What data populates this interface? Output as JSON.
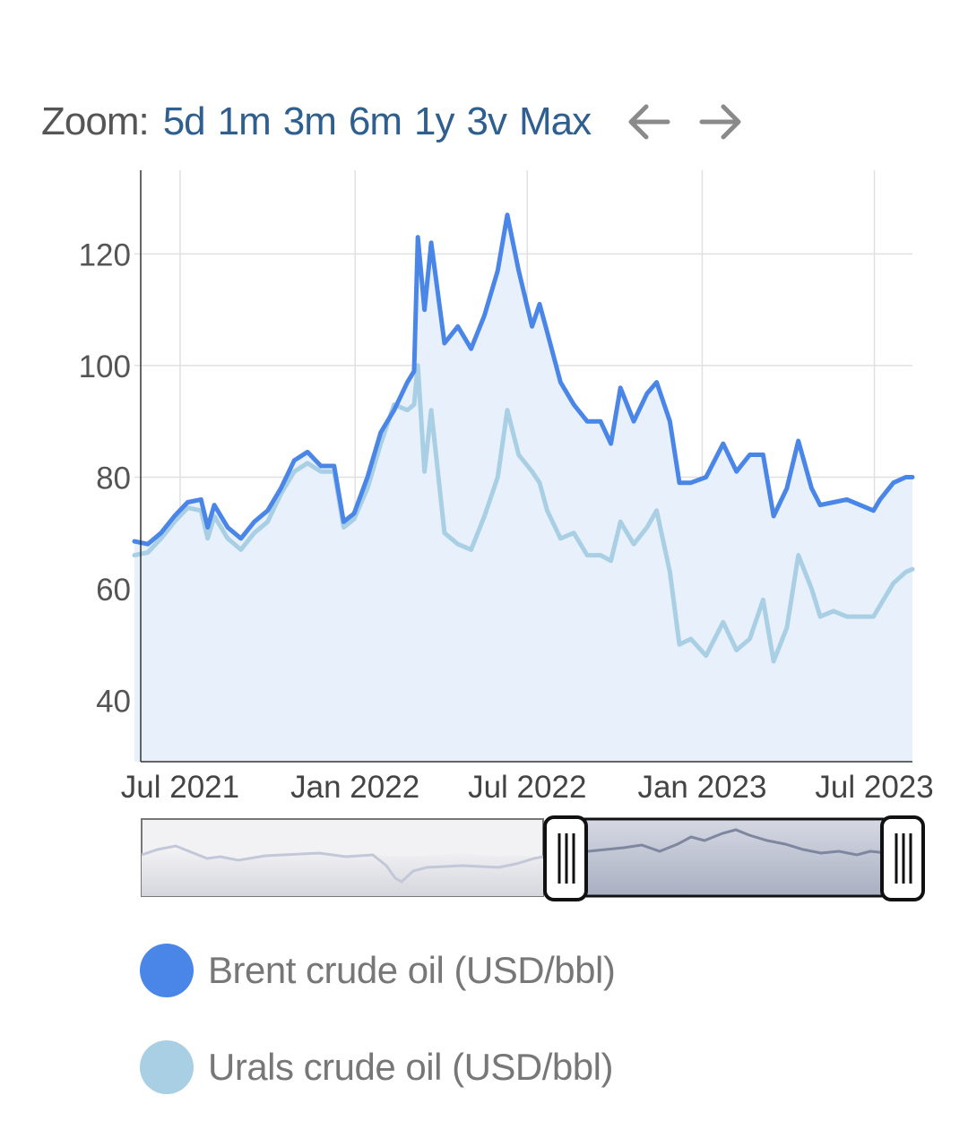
{
  "zoom": {
    "label": "Zoom:",
    "options": [
      "5d",
      "1m",
      "3m",
      "6m",
      "1y",
      "3v",
      "Max"
    ],
    "prev_icon": "arrow-left-icon",
    "next_icon": "arrow-right-icon"
  },
  "colors": {
    "brent": "#4a86e8",
    "urals": "#a8cfe3",
    "area": "#e8f0fb",
    "grid": "#e0e0e0",
    "zoom_link": "#2f5f8f"
  },
  "chart_data": {
    "type": "line",
    "title": "",
    "xlabel": "",
    "ylabel": "",
    "ylim": [
      29,
      135
    ],
    "yticks": [
      40,
      60,
      80,
      100,
      120
    ],
    "xlim": [
      "2021-05-14",
      "2023-08-10"
    ],
    "xticks": [
      {
        "date": "2021-07-01",
        "label": "Jul 2021"
      },
      {
        "date": "2022-01-01",
        "label": "Jan 2022"
      },
      {
        "date": "2022-07-01",
        "label": "Jul 2022"
      },
      {
        "date": "2023-01-01",
        "label": "Jan 2023"
      },
      {
        "date": "2023-07-01",
        "label": "Jul 2023"
      }
    ],
    "grid": true,
    "legend_position": "bottom",
    "series": [
      {
        "name": "Brent crude oil (USD/bbl)",
        "points": [
          [
            "2021-05-14",
            68.5
          ],
          [
            "2021-05-28",
            68.0
          ],
          [
            "2021-06-11",
            70.0
          ],
          [
            "2021-06-25",
            73.0
          ],
          [
            "2021-07-09",
            75.5
          ],
          [
            "2021-07-23",
            76.0
          ],
          [
            "2021-07-30",
            71.0
          ],
          [
            "2021-08-06",
            75.0
          ],
          [
            "2021-08-20",
            71.0
          ],
          [
            "2021-09-03",
            69.0
          ],
          [
            "2021-09-17",
            72.0
          ],
          [
            "2021-10-01",
            74.0
          ],
          [
            "2021-10-15",
            78.0
          ],
          [
            "2021-10-29",
            83.0
          ],
          [
            "2021-11-12",
            84.5
          ],
          [
            "2021-11-26",
            82.0
          ],
          [
            "2021-12-10",
            82.0
          ],
          [
            "2021-12-20",
            72.0
          ],
          [
            "2021-12-31",
            73.5
          ],
          [
            "2022-01-14",
            80.0
          ],
          [
            "2022-01-28",
            88.0
          ],
          [
            "2022-02-11",
            92.0
          ],
          [
            "2022-02-25",
            97.0
          ],
          [
            "2022-03-04",
            99.0
          ],
          [
            "2022-03-08",
            123.0
          ],
          [
            "2022-03-15",
            110.0
          ],
          [
            "2022-03-22",
            122.0
          ],
          [
            "2022-04-05",
            104.0
          ],
          [
            "2022-04-19",
            107.0
          ],
          [
            "2022-05-03",
            103.0
          ],
          [
            "2022-05-17",
            109.0
          ],
          [
            "2022-05-31",
            117.0
          ],
          [
            "2022-06-10",
            127.0
          ],
          [
            "2022-06-22",
            117.0
          ],
          [
            "2022-07-06",
            107.0
          ],
          [
            "2022-07-14",
            111.0
          ],
          [
            "2022-07-22",
            106.0
          ],
          [
            "2022-08-05",
            97.0
          ],
          [
            "2022-08-19",
            93.0
          ],
          [
            "2022-09-02",
            90.0
          ],
          [
            "2022-09-16",
            90.0
          ],
          [
            "2022-09-27",
            86.0
          ],
          [
            "2022-10-07",
            96.0
          ],
          [
            "2022-10-21",
            90.0
          ],
          [
            "2022-11-04",
            95.0
          ],
          [
            "2022-11-14",
            97.0
          ],
          [
            "2022-11-28",
            90.0
          ],
          [
            "2022-12-08",
            79.0
          ],
          [
            "2022-12-20",
            79.0
          ],
          [
            "2023-01-05",
            80.0
          ],
          [
            "2023-01-23",
            86.0
          ],
          [
            "2023-02-06",
            81.0
          ],
          [
            "2023-02-20",
            84.0
          ],
          [
            "2023-03-06",
            84.0
          ],
          [
            "2023-03-17",
            73.0
          ],
          [
            "2023-03-31",
            78.0
          ],
          [
            "2023-04-12",
            86.5
          ],
          [
            "2023-04-26",
            78.0
          ],
          [
            "2023-05-05",
            75.0
          ],
          [
            "2023-05-19",
            75.5
          ],
          [
            "2023-06-02",
            76.0
          ],
          [
            "2023-06-16",
            75.0
          ],
          [
            "2023-06-30",
            74.0
          ],
          [
            "2023-07-07",
            76.0
          ],
          [
            "2023-07-21",
            79.0
          ],
          [
            "2023-08-03",
            80.0
          ],
          [
            "2023-08-10",
            80.0
          ]
        ]
      },
      {
        "name": "Urals crude oil (USD/bbl)",
        "points": [
          [
            "2021-05-14",
            66.0
          ],
          [
            "2021-05-28",
            66.5
          ],
          [
            "2021-06-11",
            69.0
          ],
          [
            "2021-06-25",
            72.0
          ],
          [
            "2021-07-09",
            74.5
          ],
          [
            "2021-07-23",
            74.0
          ],
          [
            "2021-07-30",
            69.0
          ],
          [
            "2021-08-06",
            73.0
          ],
          [
            "2021-08-20",
            69.0
          ],
          [
            "2021-09-03",
            67.0
          ],
          [
            "2021-09-17",
            70.0
          ],
          [
            "2021-10-01",
            72.0
          ],
          [
            "2021-10-15",
            77.0
          ],
          [
            "2021-10-29",
            81.0
          ],
          [
            "2021-11-12",
            82.5
          ],
          [
            "2021-11-26",
            81.0
          ],
          [
            "2021-12-10",
            81.0
          ],
          [
            "2021-12-20",
            71.0
          ],
          [
            "2021-12-31",
            72.5
          ],
          [
            "2022-01-14",
            78.0
          ],
          [
            "2022-01-28",
            86.0
          ],
          [
            "2022-02-11",
            93.0
          ],
          [
            "2022-02-25",
            92.0
          ],
          [
            "2022-03-04",
            93.0
          ],
          [
            "2022-03-08",
            100.0
          ],
          [
            "2022-03-15",
            81.0
          ],
          [
            "2022-03-22",
            92.0
          ],
          [
            "2022-04-05",
            70.0
          ],
          [
            "2022-04-19",
            68.0
          ],
          [
            "2022-05-03",
            67.0
          ],
          [
            "2022-05-17",
            73.0
          ],
          [
            "2022-05-31",
            80.0
          ],
          [
            "2022-06-10",
            92.0
          ],
          [
            "2022-06-22",
            84.0
          ],
          [
            "2022-07-06",
            81.0
          ],
          [
            "2022-07-14",
            79.0
          ],
          [
            "2022-07-22",
            74.0
          ],
          [
            "2022-08-05",
            69.0
          ],
          [
            "2022-08-19",
            70.0
          ],
          [
            "2022-09-02",
            66.0
          ],
          [
            "2022-09-16",
            66.0
          ],
          [
            "2022-09-27",
            65.0
          ],
          [
            "2022-10-07",
            72.0
          ],
          [
            "2022-10-21",
            68.0
          ],
          [
            "2022-11-04",
            71.0
          ],
          [
            "2022-11-14",
            74.0
          ],
          [
            "2022-11-28",
            63.0
          ],
          [
            "2022-12-08",
            50.0
          ],
          [
            "2022-12-20",
            51.0
          ],
          [
            "2023-01-05",
            48.0
          ],
          [
            "2023-01-23",
            54.0
          ],
          [
            "2023-02-06",
            49.0
          ],
          [
            "2023-02-20",
            51.0
          ],
          [
            "2023-03-06",
            58.0
          ],
          [
            "2023-03-17",
            47.0
          ],
          [
            "2023-03-31",
            53.0
          ],
          [
            "2023-04-12",
            66.0
          ],
          [
            "2023-04-26",
            60.0
          ],
          [
            "2023-05-05",
            55.0
          ],
          [
            "2023-05-19",
            56.0
          ],
          [
            "2023-06-02",
            55.0
          ],
          [
            "2023-06-16",
            55.0
          ],
          [
            "2023-06-30",
            55.0
          ],
          [
            "2023-07-07",
            57.0
          ],
          [
            "2023-07-21",
            61.0
          ],
          [
            "2023-08-03",
            63.0
          ],
          [
            "2023-08-10",
            63.5
          ]
        ]
      }
    ]
  },
  "legend": [
    {
      "label": "Brent crude oil (USD/bbl)",
      "color": "#4a86e8"
    },
    {
      "label": "Urals crude oil (USD/bbl)",
      "color": "#a8cfe3"
    }
  ]
}
